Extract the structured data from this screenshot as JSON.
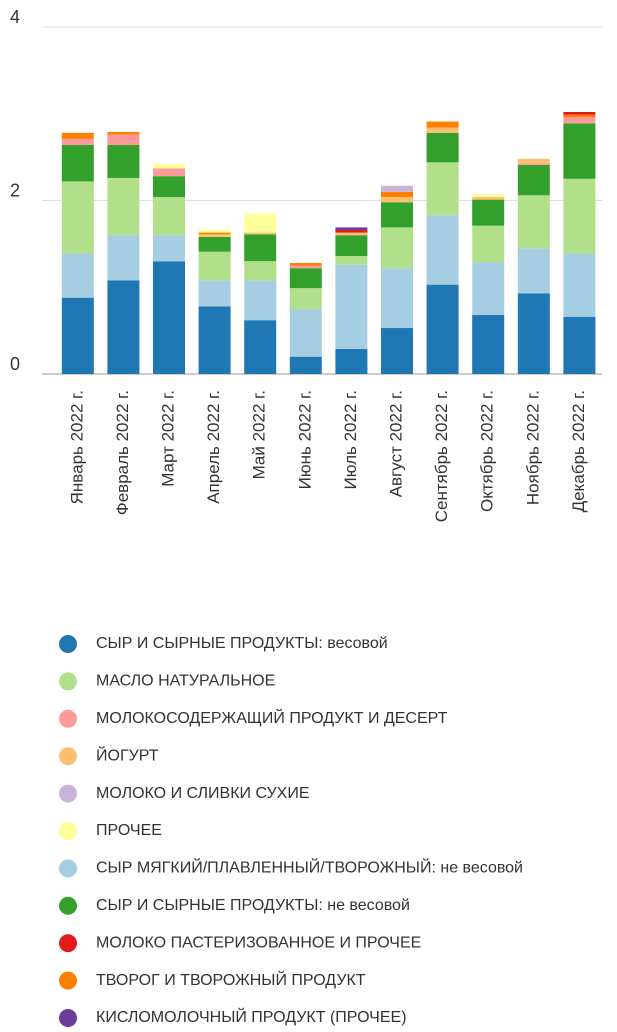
{
  "chart_data": {
    "type": "stacked_bar",
    "categories": [
      "Январь 2022 г.",
      "Февраль 2022 г.",
      "Март 2022 г.",
      "Апрель 2022 г.",
      "Май 2022 г.",
      "Июнь 2022 г.",
      "Июль 2022 г.",
      "Август 2022 г.",
      "Сентябрь 2022 г.",
      "Октябрь 2022 г.",
      "Ноябрь 2022 г.",
      "Декабрь 2022 г."
    ],
    "ylim": [
      0,
      4
    ],
    "yticks": [
      0,
      2,
      4
    ],
    "grid": true,
    "legend": "bottom",
    "series": [
      {
        "name": "СЫР И СЫРНЫЕ ПРОДУКТЫ: весовой",
        "color": "#1f78b4",
        "values": [
          0.88,
          1.08,
          1.3,
          0.78,
          0.62,
          0.2,
          0.29,
          0.53,
          1.03,
          0.68,
          0.93,
          0.66
        ]
      },
      {
        "name": "МАСЛО НАТУРАЛЬНОЕ",
        "color": "#b2df8a",
        "values": [
          0.83,
          0.66,
          0.44,
          0.33,
          0.22,
          0.24,
          0.1,
          0.47,
          0.61,
          0.42,
          0.61,
          0.86
        ]
      },
      {
        "name": "МОЛОКОСОДЕРЖАЩИЙ ПРОДУКТ И ДЕСЕРТ",
        "color": "#fb9a99",
        "values": [
          0.07,
          0.12,
          0.09,
          0,
          0,
          0.03,
          0,
          0,
          0,
          0,
          0.02,
          0.07
        ]
      },
      {
        "name": "ЙОГУРТ",
        "color": "#fdbf6f",
        "values": [
          0,
          0,
          0,
          0.03,
          0.02,
          0,
          0.03,
          0.06,
          0.06,
          0.03,
          0.05,
          0
        ]
      },
      {
        "name": "МОЛОКО И СЛИВКИ СУХИЕ",
        "color": "#cab2d6",
        "values": [
          0,
          0,
          0,
          0,
          0,
          0,
          0,
          0.07,
          0,
          0,
          0,
          0
        ]
      },
      {
        "name": "ПРОЧЕЕ",
        "color": "#ffff99",
        "values": [
          0,
          0,
          0.05,
          0.03,
          0.22,
          0,
          0,
          0,
          0,
          0.03,
          0,
          0
        ]
      },
      {
        "name": "СЫР МЯГКИЙ/ПЛАВЛЕННЫЙ/ТВОРОЖНЫЙ: не весовой",
        "color": "#a6cee3",
        "values": [
          0.51,
          0.52,
          0.3,
          0.3,
          0.46,
          0.55,
          0.97,
          0.69,
          0.8,
          0.61,
          0.52,
          0.73
        ]
      },
      {
        "name": "СЫР И СЫРНЫЕ ПРОДУКТЫ: не весовой",
        "color": "#33a02c",
        "values": [
          0.42,
          0.38,
          0.24,
          0.17,
          0.31,
          0.23,
          0.24,
          0.29,
          0.34,
          0.3,
          0.35,
          0.64
        ]
      },
      {
        "name": "МОЛОКО ПАСТЕРИЗОВАННОЕ И ПРОЧЕЕ",
        "color": "#e31a1c",
        "values": [
          0,
          0,
          0,
          0,
          0,
          0,
          0.03,
          0,
          0,
          0,
          0,
          0.03
        ]
      },
      {
        "name": "ТВОРОГ И ТВОРОЖНЫЙ ПРОДУКТ",
        "color": "#ff7f00",
        "values": [
          0.07,
          0.03,
          0,
          0.02,
          0,
          0.03,
          0,
          0.06,
          0.07,
          0,
          0,
          0.03
        ]
      },
      {
        "name": "КИСЛОМОЛОЧНЫЙ ПРОДУКТ (ПРОЧЕЕ)",
        "color": "#6a3d9a",
        "values": [
          0,
          0,
          0,
          0,
          0,
          0,
          0.03,
          0,
          0,
          0,
          0,
          0
        ]
      }
    ]
  }
}
